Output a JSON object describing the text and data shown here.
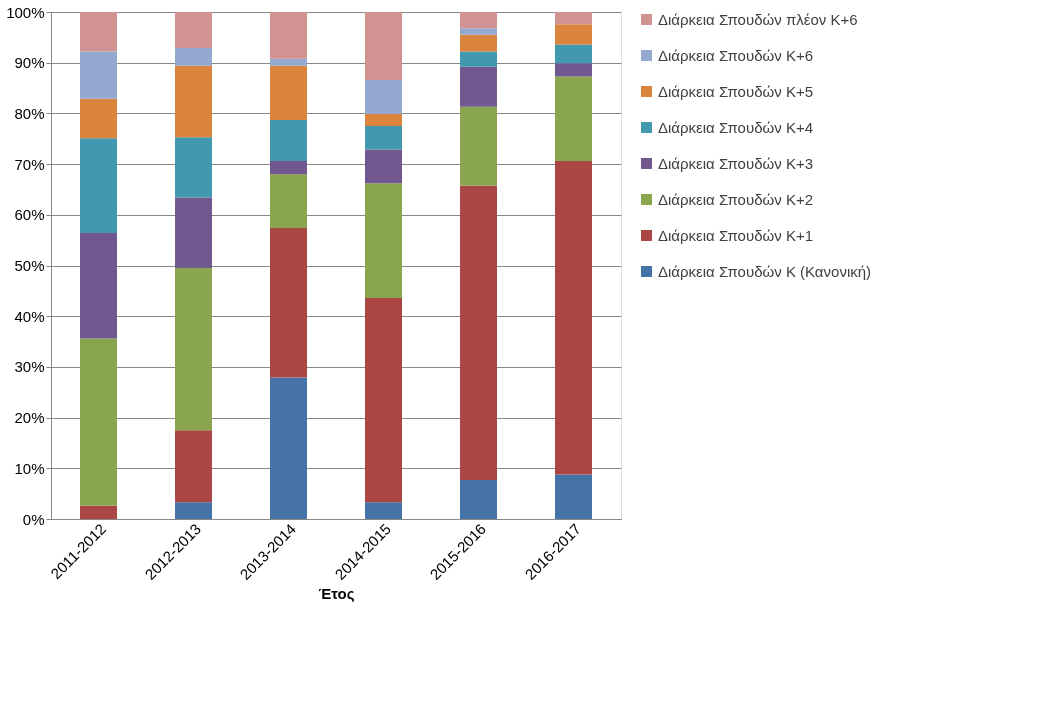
{
  "chart_data": {
    "type": "bar",
    "stacked": true,
    "xlabel": "Έτος",
    "categories": [
      "2011-2012",
      "2012-2013",
      "2013-2014",
      "2014-2015",
      "2015-2016",
      "2016-2017"
    ],
    "series": [
      {
        "name": "Διάρκεια Σπουδών Κ (Κανονική)",
        "color": "#4572a7",
        "values": [
          0,
          3.3,
          27.9,
          3.3,
          7.7,
          8.8
        ]
      },
      {
        "name": "Διάρκεια Σπουδών Κ+1",
        "color": "#aa4643",
        "values": [
          2.6,
          14.2,
          29.5,
          40.3,
          58.1,
          61.8
        ]
      },
      {
        "name": "Διάρκεια Σπουδών Κ+2",
        "color": "#89a54e",
        "values": [
          33.0,
          32.0,
          10.6,
          22.6,
          15.5,
          16.7
        ]
      },
      {
        "name": "Διάρκεια Σπουδών Κ+3",
        "color": "#71588f",
        "values": [
          20.8,
          13.9,
          2.6,
          6.7,
          7.9,
          2.6
        ]
      },
      {
        "name": "Διάρκεια Σπουδών Κ+4",
        "color": "#4198af",
        "values": [
          18.7,
          11.9,
          8.1,
          4.6,
          3.0,
          3.7
        ]
      },
      {
        "name": "Διάρκεια Σπουδών Κ+5",
        "color": "#db843d",
        "values": [
          7.8,
          14.1,
          10.7,
          2.4,
          3.3,
          4.0
        ]
      },
      {
        "name": "Διάρκεια Σπουδών Κ+6",
        "color": "#93a9cf",
        "values": [
          9.3,
          3.5,
          1.4,
          6.7,
          1.3,
          0
        ]
      },
      {
        "name": "Διάρκεια Σπουδών πλέον Κ+6",
        "color": "#d19392",
        "values": [
          7.8,
          7.1,
          9.2,
          13.4,
          3.2,
          2.4
        ]
      }
    ],
    "ylim": [
      0,
      100
    ],
    "yticks": [
      {
        "value": 0,
        "label": "0%"
      },
      {
        "value": 10,
        "label": "10%"
      },
      {
        "value": 20,
        "label": "20%"
      },
      {
        "value": 30,
        "label": "30%"
      },
      {
        "value": 40,
        "label": "40%"
      },
      {
        "value": 50,
        "label": "50%"
      },
      {
        "value": 60,
        "label": "60%"
      },
      {
        "value": 70,
        "label": "70%"
      },
      {
        "value": 80,
        "label": "80%"
      },
      {
        "value": 90,
        "label": "90%"
      },
      {
        "value": 100,
        "label": "100%"
      }
    ],
    "grid": "y",
    "legend": "right"
  }
}
